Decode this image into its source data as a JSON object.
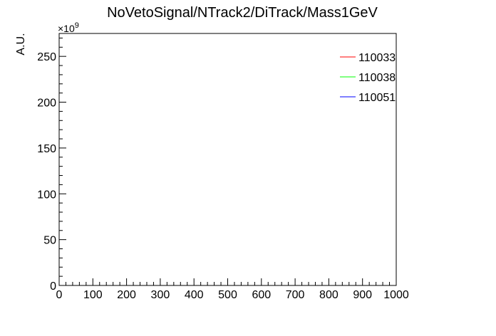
{
  "chart_data": {
    "type": "line",
    "title": "NoVetoSignal/NTrack2/DiTrack/Mass1GeV",
    "ylabel": "A.U.",
    "xlabel": "",
    "y_exponent": "×10^9",
    "xlim": [
      0,
      1000
    ],
    "ylim": [
      0,
      275
    ],
    "x_ticks": [
      0,
      100,
      200,
      300,
      400,
      500,
      600,
      700,
      800,
      900,
      1000
    ],
    "y_ticks": [
      0,
      50,
      100,
      150,
      200,
      250
    ],
    "grid": false,
    "legend_position": "top-right",
    "series": [
      {
        "name": "110033",
        "color": "#ff0000",
        "x": [
          0,
          1000
        ],
        "y": [
          0,
          0
        ]
      },
      {
        "name": "110038",
        "color": "#00ff00",
        "x": [
          0,
          1000
        ],
        "y": [
          0,
          0
        ]
      },
      {
        "name": "110051",
        "color": "#0000ff",
        "x": [
          0,
          1000
        ],
        "y": [
          0,
          0
        ]
      }
    ]
  }
}
